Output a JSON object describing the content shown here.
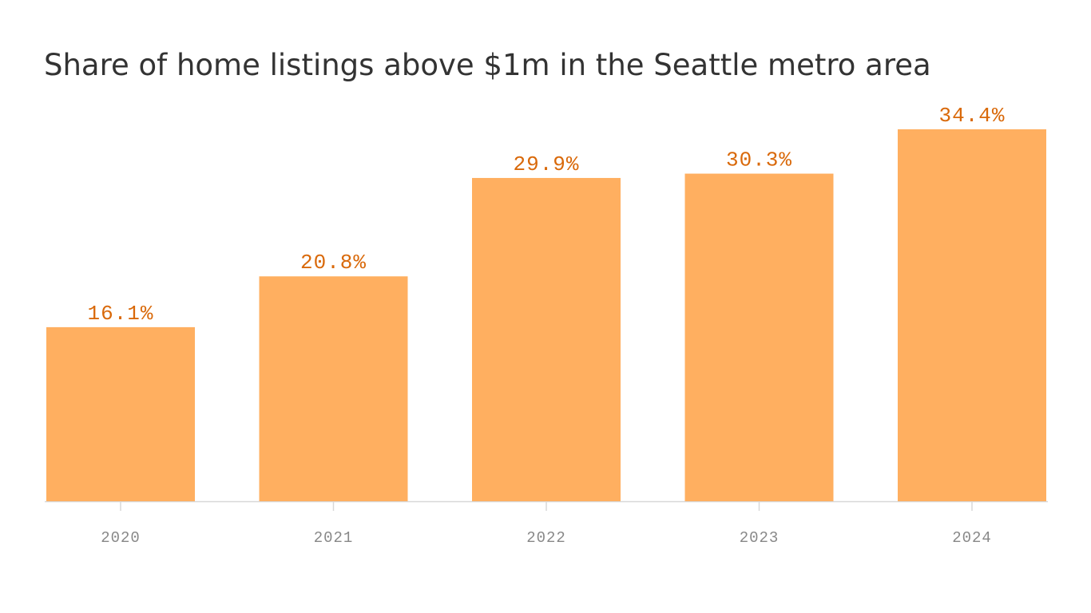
{
  "chart_data": {
    "type": "bar",
    "title": "Share of home listings above $1m in the Seattle metro area",
    "categories": [
      "2020",
      "2021",
      "2022",
      "2023",
      "2024"
    ],
    "values": [
      16.1,
      20.8,
      29.9,
      30.3,
      34.4
    ],
    "value_labels": [
      "16.1%",
      "20.8%",
      "29.9%",
      "30.3%",
      "34.4%"
    ],
    "color": "#ffaf60"
  }
}
